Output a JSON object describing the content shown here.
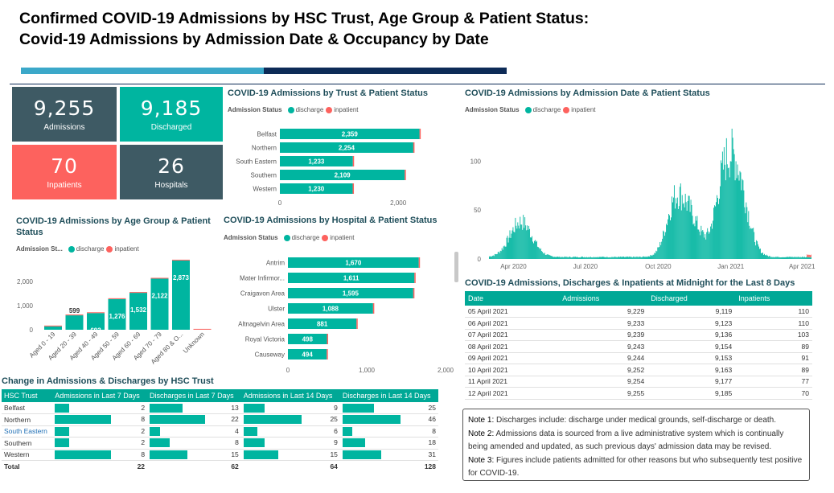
{
  "header": {
    "line1": "Confirmed COVID-19 Admissions by HSC Trust, Age Group & Patient Status:",
    "line2": "Covid-19 Admissions by Admission Date & Occupancy by Date"
  },
  "colors": {
    "teal": "#00b5a0",
    "red": "#fd625e",
    "slate": "#3e5a64",
    "navy": "#0d2b57"
  },
  "cards": [
    {
      "value": "9,255",
      "label": "Admissions",
      "color": "#3e5a64"
    },
    {
      "value": "9,185",
      "label": "Discharged",
      "color": "#00b5a0"
    },
    {
      "value": "70",
      "label": "Inpatients",
      "color": "#fd625e"
    },
    {
      "value": "26",
      "label": "Hospitals",
      "color": "#3e5a64"
    }
  ],
  "legend": {
    "title": "Admission Status",
    "title_short": "Admission St...",
    "discharge": "discharge",
    "inpatient": "inpatient"
  },
  "chart_data": [
    {
      "type": "bar",
      "orientation": "horizontal",
      "title": "COVID-19 Admissions by Trust & Patient Status",
      "categories": [
        "Belfast",
        "Northern",
        "South Eastern",
        "Southern",
        "Western"
      ],
      "series": [
        {
          "name": "discharge",
          "values": [
            2359,
            2254,
            1233,
            2109,
            1230
          ]
        },
        {
          "name": "inpatient",
          "values": [
            13,
            19,
            6,
            10,
            19
          ]
        }
      ],
      "data_labels": [
        "2,359",
        "2,254",
        "1,233",
        "2,109",
        "1,230"
      ],
      "x_ticks": [
        "0",
        "2,000"
      ],
      "xlim": [
        0,
        2600
      ]
    },
    {
      "type": "bar",
      "title": "COVID-19 Admissions by Age Group & Patient Status",
      "categories": [
        "Aged 0 - 19",
        "Aged 20 - 39",
        "Aged 40 - 49",
        "Aged 50 - 59",
        "Aged 60 - 69",
        "Aged 70 - 79",
        "Aged 80 & O...",
        "Unknown"
      ],
      "series": [
        {
          "name": "discharge",
          "values": [
            140,
            597,
            691,
            1272,
            1530,
            2118,
            2870,
            3
          ]
        },
        {
          "name": "inpatient",
          "values": [
            0,
            2,
            2,
            4,
            2,
            4,
            3,
            0
          ]
        }
      ],
      "data_labels": [
        "",
        "599",
        "693",
        "1,276",
        "1,532",
        "2,122",
        "2,873",
        ""
      ],
      "y_ticks": [
        "0",
        "1,000",
        "2,000"
      ],
      "ylim": [
        0,
        3000
      ]
    },
    {
      "type": "bar",
      "orientation": "horizontal",
      "title": "COVID-19 Admissions by Hospital & Patient Status",
      "categories": [
        "Antrim",
        "Mater Infirmor...",
        "Craigavon Area",
        "Ulster",
        "Altnagelvin Area",
        "Royal Victoria",
        "Causeway"
      ],
      "series": [
        {
          "name": "discharge",
          "values": [
            1660,
            1605,
            1590,
            1080,
            870,
            495,
            492
          ]
        },
        {
          "name": "inpatient",
          "values": [
            10,
            6,
            5,
            8,
            11,
            3,
            2
          ]
        }
      ],
      "data_labels": [
        "1,670",
        "1,611",
        "1,595",
        "1,088",
        "881",
        "498",
        "494"
      ],
      "x_ticks": [
        "0",
        "1,000",
        "2,000"
      ],
      "xlim": [
        0,
        2000
      ]
    },
    {
      "type": "bar",
      "title": "COVID-19 Admissions by Admission Date & Patient Status",
      "x_ticks": [
        "Apr 2020",
        "Jul 2020",
        "Oct 2020",
        "Jan 2021",
        "Apr 2021"
      ],
      "y_ticks": [
        "0",
        "50",
        "100"
      ],
      "ylim": [
        0,
        115
      ],
      "x_range": [
        "2020-03-01",
        "2021-04-12"
      ],
      "shape": "daily admissions; first wave peaking about 40 in mid-April 2020, low through summer, second wave peaking about 85 in mid-November 2020, third wave peaking about 108 in early January 2021, declining to near zero by April 2021; inpatient (red) only in final days"
    }
  ],
  "change_table": {
    "title": "Change in Admissions & Discharges by HSC Trust",
    "columns": [
      "HSC Trust",
      "Admissions in Last 7 Days",
      "Discharges in Last 7 Days",
      "Admissions in Last 14 Days",
      "Discharges in Last 14 Days"
    ],
    "rows": [
      {
        "trust": "Belfast",
        "values": [
          2,
          13,
          9,
          25
        ]
      },
      {
        "trust": "Northern",
        "values": [
          8,
          22,
          25,
          46
        ]
      },
      {
        "trust": "South Eastern",
        "values": [
          2,
          4,
          6,
          8
        ]
      },
      {
        "trust": "Southern",
        "values": [
          2,
          8,
          9,
          18
        ]
      },
      {
        "trust": "Western",
        "values": [
          8,
          15,
          15,
          31
        ]
      }
    ],
    "total": {
      "label": "Total",
      "values": [
        22,
        62,
        64,
        128
      ]
    },
    "max_per_column": [
      8,
      22,
      25,
      46
    ]
  },
  "midnight_table": {
    "title": "COVID-19 Admissions, Discharges & Inpatients at Midnight for the Last 8 Days",
    "columns": [
      "Date",
      "Admissions",
      "Discharged",
      "Inpatients"
    ],
    "rows": [
      [
        "05 April 2021",
        "9,229",
        "9,119",
        "110"
      ],
      [
        "06 April 2021",
        "9,233",
        "9,123",
        "110"
      ],
      [
        "07 April 2021",
        "9,239",
        "9,136",
        "103"
      ],
      [
        "08 April 2021",
        "9,243",
        "9,154",
        "89"
      ],
      [
        "09 April 2021",
        "9,244",
        "9,153",
        "91"
      ],
      [
        "10 April 2021",
        "9,252",
        "9,163",
        "89"
      ],
      [
        "11 April 2021",
        "9,254",
        "9,177",
        "77"
      ],
      [
        "12 April 2021",
        "9,255",
        "9,185",
        "70"
      ]
    ]
  },
  "notes": [
    {
      "label": "Note 1:",
      "text": " Discharges include: discharge under medical grounds, self-discharge or death."
    },
    {
      "label": "Note 2:",
      "text": " Admissions data is sourced from a live administrative system which is continually being amended and updated, as such previous days' admission data may be revised."
    },
    {
      "label": "Note 3:",
      "text": " Figures include patients admitted for other reasons but who subsequently test positive for COVID-19."
    }
  ]
}
